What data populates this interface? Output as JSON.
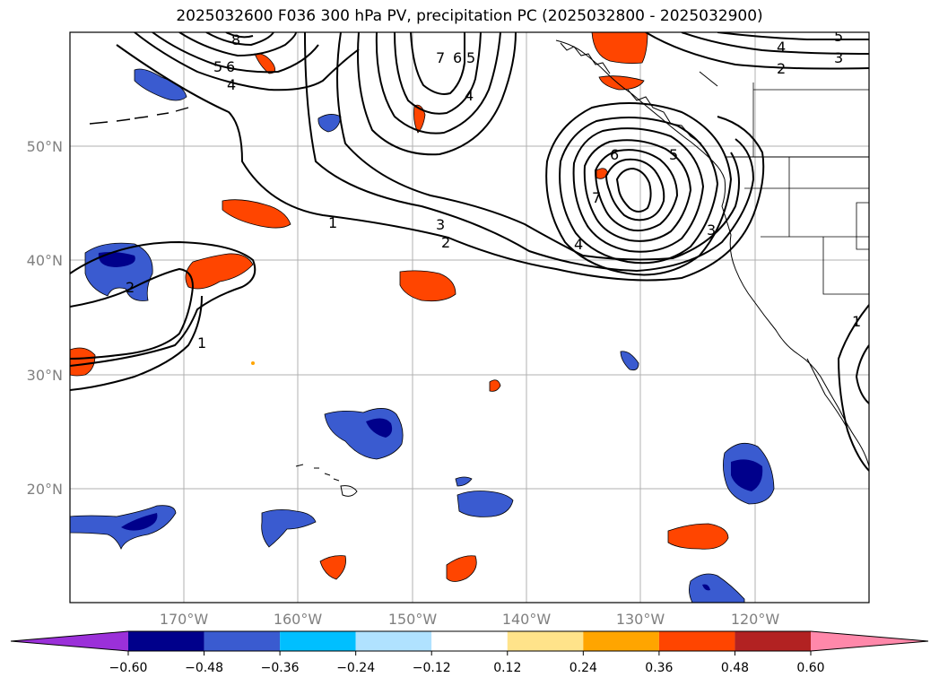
{
  "title": "2025032600 F036 300 hPa PV, precipitation PC (2025032800 - 2025032900)",
  "lat_labels": [
    "50°N",
    "40°N",
    "30°N",
    "20°N"
  ],
  "lon_labels": [
    "170°W",
    "160°W",
    "150°W",
    "140°W",
    "130°W",
    "120°W"
  ],
  "colorbar": {
    "tick_labels": [
      "−0.60",
      "−0.48",
      "−0.36",
      "−0.24",
      "−0.12",
      "0.12",
      "0.24",
      "0.36",
      "0.48",
      "0.60"
    ],
    "colors": [
      "#9b30d9",
      "#00008b",
      "#3a5bd0",
      "#00bfff",
      "#b0e2ff",
      "#ffffff",
      "#ffe38a",
      "#ffa500",
      "#ff4500",
      "#b22222",
      "#ff88aa"
    ]
  },
  "contour_labels": [
    "8",
    "5",
    "6",
    "4",
    "7",
    "6",
    "5",
    "4",
    "5",
    "4",
    "3",
    "2",
    "1",
    "3",
    "2",
    "6",
    "5",
    "7",
    "4",
    "3",
    "2",
    "1",
    "1"
  ],
  "colors": {
    "negative_fill": "#3a5bd0",
    "negative_core": "#00008b",
    "positive_fill": "#ff4500",
    "positive_edge": "#ffa500"
  }
}
